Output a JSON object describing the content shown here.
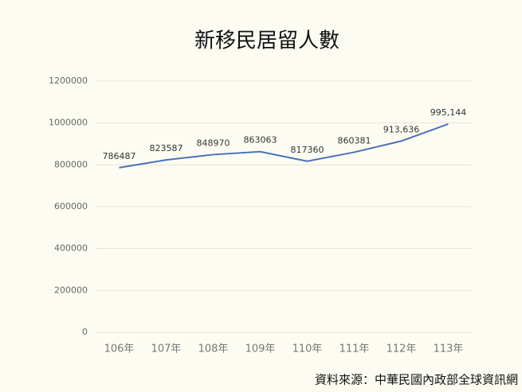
{
  "chart_data": {
    "type": "line",
    "title": "新移民居留人數",
    "categories": [
      "106年",
      "107年",
      "108年",
      "109年",
      "110年",
      "111年",
      "112年",
      "113年"
    ],
    "values": [
      786487,
      823587,
      848970,
      863063,
      817360,
      860381,
      913636,
      995144
    ],
    "value_labels": [
      "786487",
      "823587",
      "848970",
      "863063",
      "817360",
      "860381",
      "913,636",
      "995,144"
    ],
    "color": "#4a72b8",
    "ylim": [
      0,
      1200000
    ],
    "yticks": [
      0,
      200000,
      400000,
      600000,
      800000,
      1000000,
      1200000
    ],
    "grid": true,
    "source": "資料來源：中華民國內政部全球資訊網"
  }
}
